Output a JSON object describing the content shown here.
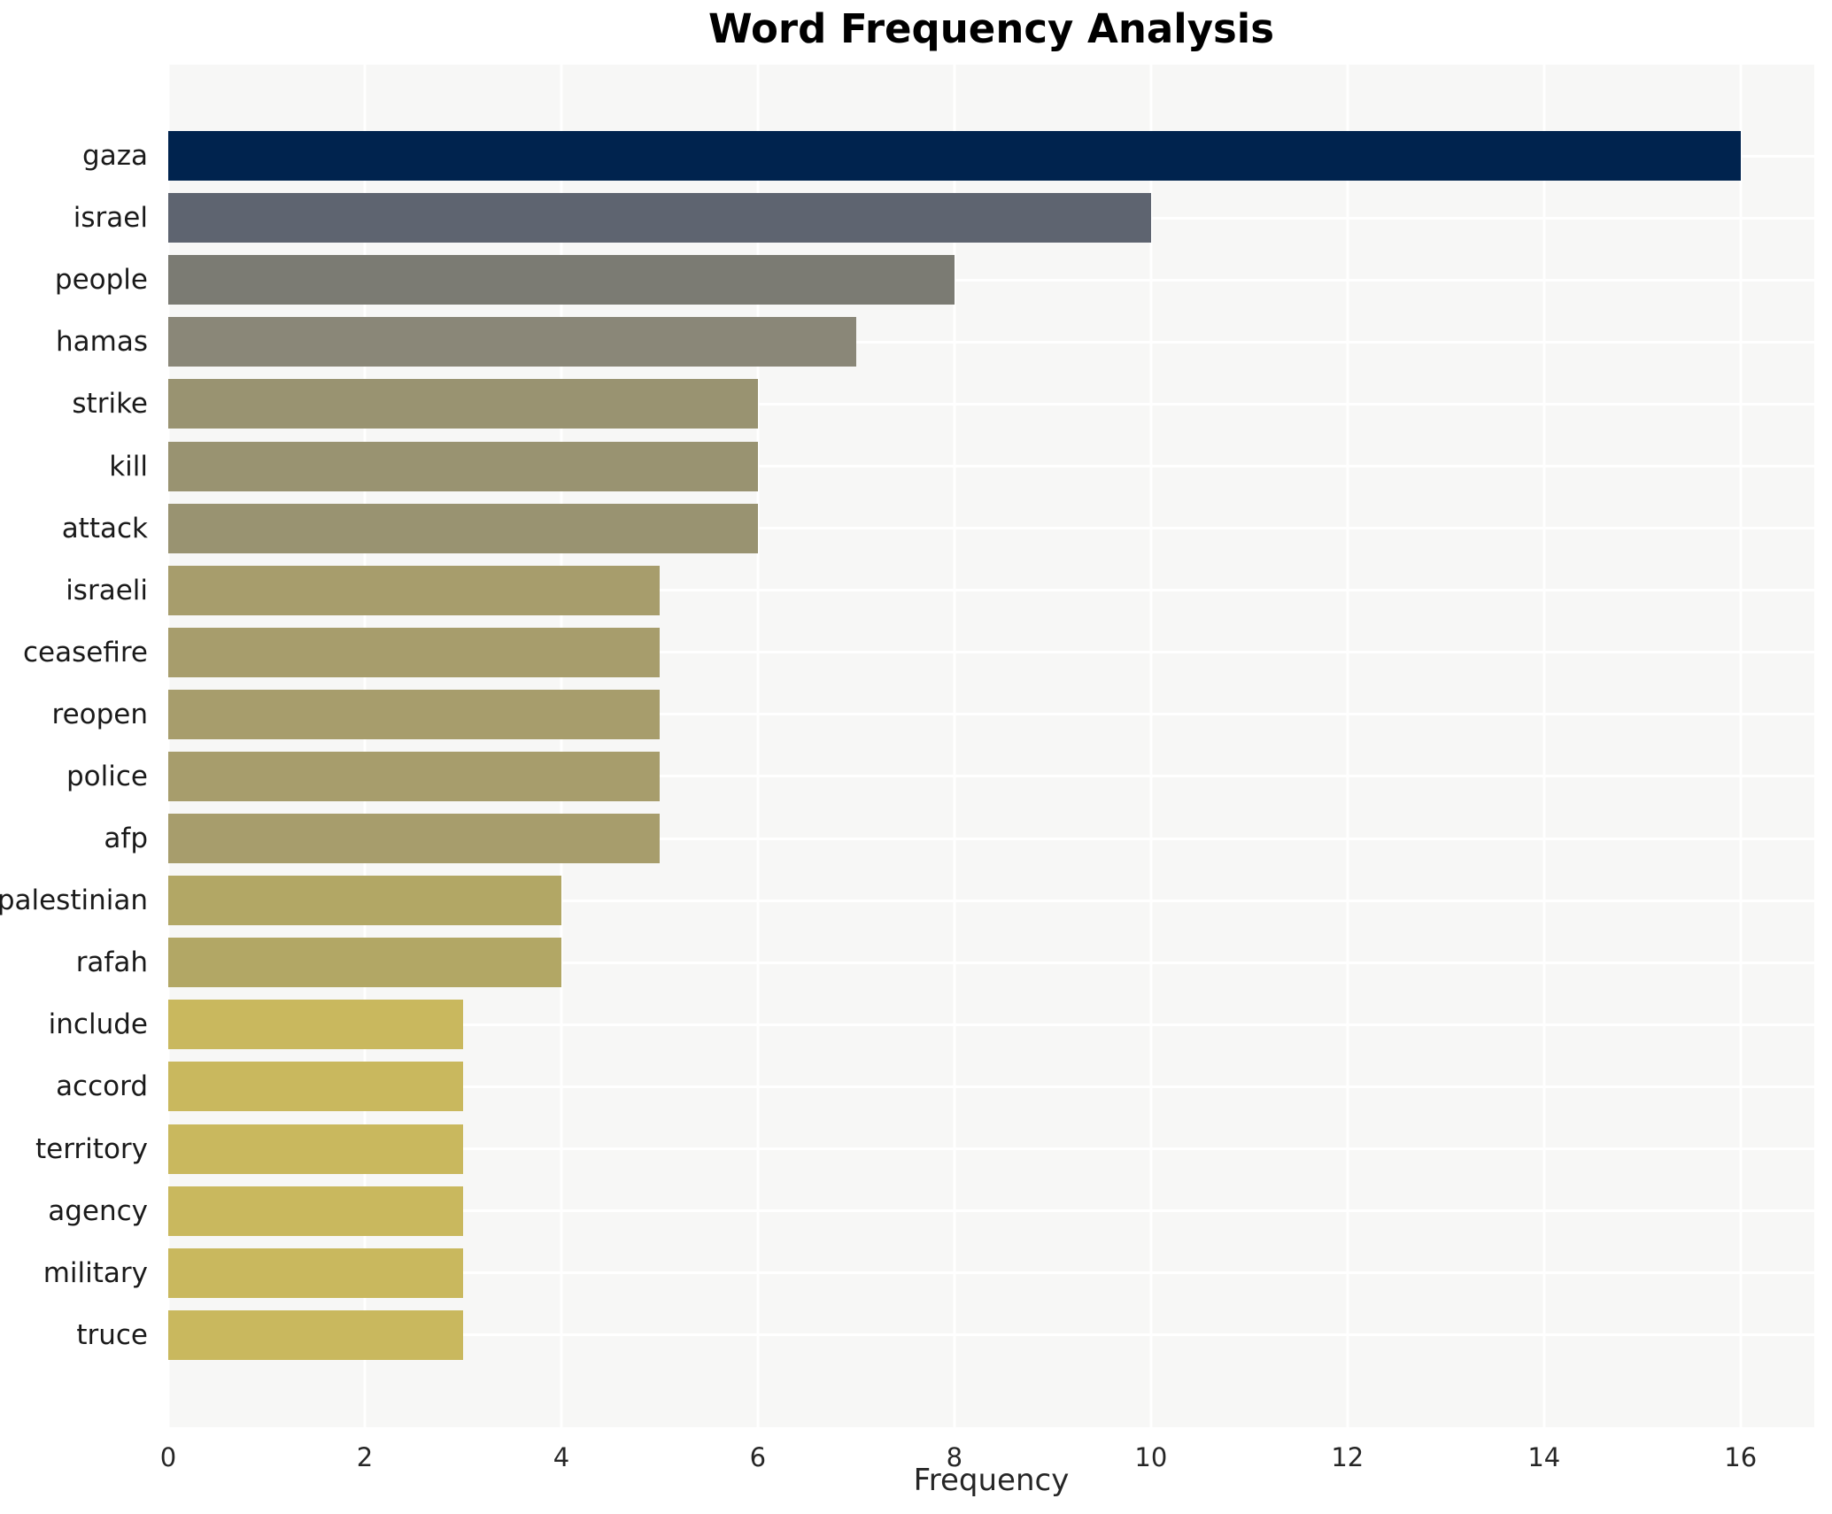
{
  "title": "Word Frequency Analysis",
  "xlabel": "Frequency",
  "axis": {
    "xticks": [
      0,
      2,
      4,
      6,
      8,
      10,
      12,
      14,
      16
    ],
    "xmax_display": 16.75,
    "plot_bg_color": "#f7f7f6",
    "grid_color": "#ffffff",
    "tick_color": "#262626",
    "label_color": "#1a1a1a"
  },
  "bars": [
    {
      "label": "gaza",
      "value": 16,
      "color": "#00234e"
    },
    {
      "label": "israel",
      "value": 10,
      "color": "#5e6470"
    },
    {
      "label": "people",
      "value": 8,
      "color": "#7b7b73"
    },
    {
      "label": "hamas",
      "value": 7,
      "color": "#8a8778"
    },
    {
      "label": "strike",
      "value": 6,
      "color": "#999371"
    },
    {
      "label": "kill",
      "value": 6,
      "color": "#999371"
    },
    {
      "label": "attack",
      "value": 6,
      "color": "#999371"
    },
    {
      "label": "israeli",
      "value": 5,
      "color": "#a79d6c"
    },
    {
      "label": "ceasefire",
      "value": 5,
      "color": "#a79d6c"
    },
    {
      "label": "reopen",
      "value": 5,
      "color": "#a79d6c"
    },
    {
      "label": "police",
      "value": 5,
      "color": "#a79d6c"
    },
    {
      "label": "afp",
      "value": 5,
      "color": "#a79d6c"
    },
    {
      "label": "palestinian",
      "value": 4,
      "color": "#b2a765"
    },
    {
      "label": "rafah",
      "value": 4,
      "color": "#b2a765"
    },
    {
      "label": "include",
      "value": 3,
      "color": "#c9b85e"
    },
    {
      "label": "accord",
      "value": 3,
      "color": "#c9b85e"
    },
    {
      "label": "territory",
      "value": 3,
      "color": "#c9b85e"
    },
    {
      "label": "agency",
      "value": 3,
      "color": "#c9b85e"
    },
    {
      "label": "military",
      "value": 3,
      "color": "#c9b85e"
    },
    {
      "label": "truce",
      "value": 3,
      "color": "#c9b85e"
    }
  ],
  "chart_data": {
    "type": "bar",
    "orientation": "horizontal",
    "title": "Word Frequency Analysis",
    "xlabel": "Frequency",
    "ylabel": "",
    "categories": [
      "gaza",
      "israel",
      "people",
      "hamas",
      "strike",
      "kill",
      "attack",
      "israeli",
      "ceasefire",
      "reopen",
      "police",
      "afp",
      "palestinian",
      "rafah",
      "include",
      "accord",
      "territory",
      "agency",
      "military",
      "truce"
    ],
    "values": [
      16,
      10,
      8,
      7,
      6,
      6,
      6,
      5,
      5,
      5,
      5,
      5,
      4,
      4,
      3,
      3,
      3,
      3,
      3,
      3
    ],
    "xlim": [
      0,
      16.75
    ],
    "xticks": [
      0,
      2,
      4,
      6,
      8,
      10,
      12,
      14,
      16
    ],
    "grid": true,
    "legend": false,
    "palette": "cividis (dark navy to gold, mapped to frequency)"
  }
}
